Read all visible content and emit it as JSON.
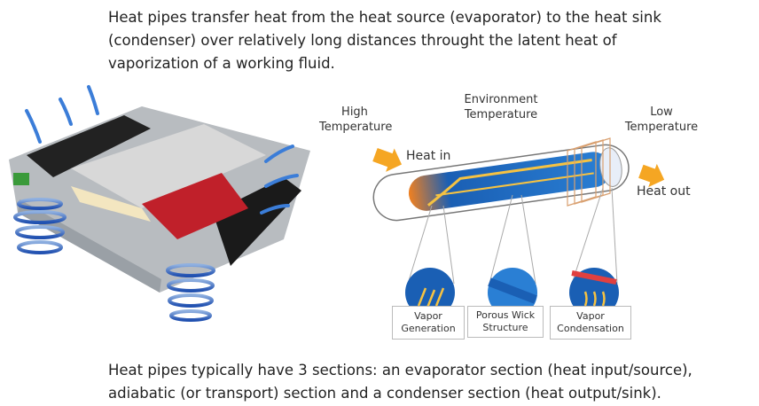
{
  "intro": "Heat pipes transfer heat from the heat source (evaporator) to the heat sink (condenser) over relatively long distances throught the latent heat of vaporization of a working fluid.",
  "diagram": {
    "high_temperature": "High Temperature",
    "environment_temperature": "Environment Temperature",
    "low_temperature": "Low Temperature",
    "heat_in": "Heat in",
    "heat_out": "Heat out",
    "sections": [
      "Vapor Generation",
      "Porous Wick Structure",
      "Vapor Condensation"
    ]
  },
  "outro": "Heat pipes typically have 3 sections: an evaporator section (heat input/source), adiabatic (or transport) section and a condenser section (heat output/sink)."
}
